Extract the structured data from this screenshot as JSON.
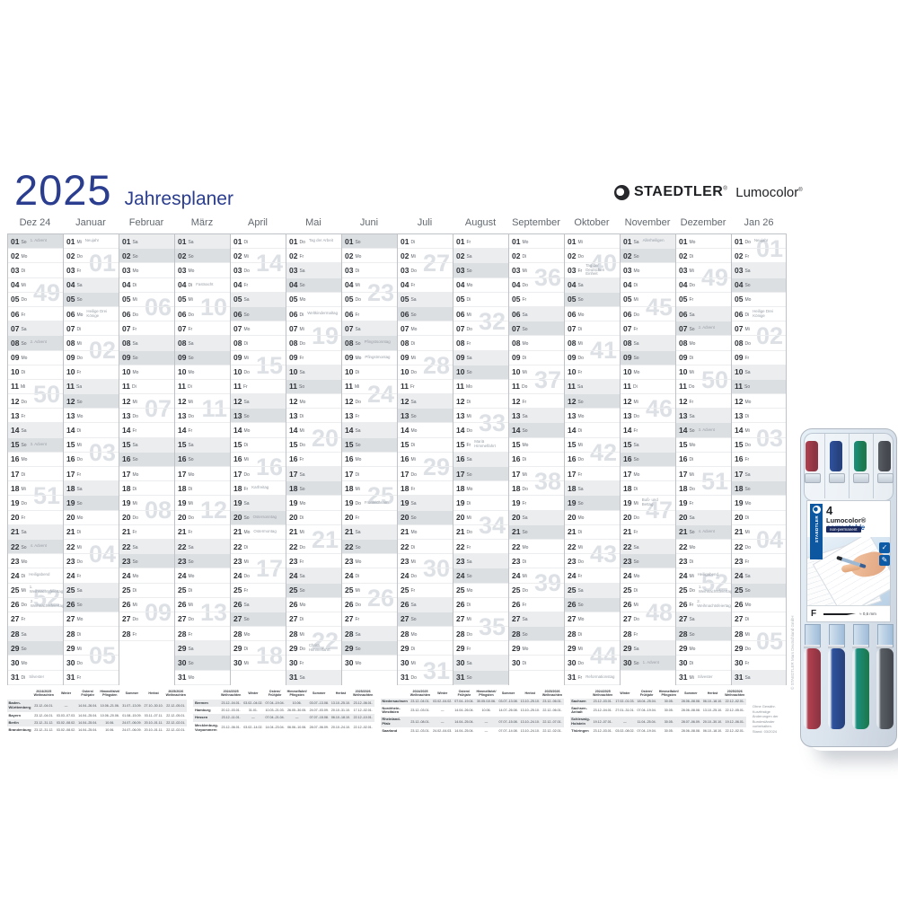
{
  "title": {
    "year": "2025",
    "name": "Jahresplaner"
  },
  "brand": {
    "staedtler": "STAEDTLER",
    "lumocolor": "Lumocolor",
    "reg": "®"
  },
  "colors": {
    "title_blue": "#2a3d8f",
    "staedtler_blue": "#0d57a0",
    "weekend_sat": "#ebedef",
    "weekend_sun": "#dcdfe2",
    "week_number": "#dde1e6",
    "grid_line": "#bfc3c8"
  },
  "calendar": {
    "weekday_abbr": [
      "Mo",
      "Di",
      "Mi",
      "Do",
      "Fr",
      "Sa",
      "So"
    ],
    "months": [
      {
        "label": "Dez 24",
        "days": 31,
        "first_weekday": 6,
        "holidays": {
          "1": "1. Advent",
          "8": "2. Advent",
          "15": "3. Advent",
          "22": "4. Advent",
          "24": "Heiligabend",
          "25": "1. Weihnachtsfeiertag",
          "26": "2. Weihnachtsfeiertag",
          "31": "Silvester"
        },
        "weeks": [
          {
            "n": "49",
            "row": 3
          },
          {
            "n": "50",
            "row": 10
          },
          {
            "n": "51",
            "row": 17
          },
          {
            "n": "52",
            "row": 24
          }
        ]
      },
      {
        "label": "Januar",
        "days": 31,
        "first_weekday": 2,
        "holidays": {
          "1": "Neujahr",
          "6": "Heilige Drei Könige"
        },
        "weeks": [
          {
            "n": "01",
            "row": 1
          },
          {
            "n": "02",
            "row": 7
          },
          {
            "n": "03",
            "row": 14
          },
          {
            "n": "04",
            "row": 21
          },
          {
            "n": "05",
            "row": 28
          }
        ]
      },
      {
        "label": "Februar",
        "days": 28,
        "first_weekday": 5,
        "holidays": {},
        "weeks": [
          {
            "n": "06",
            "row": 4
          },
          {
            "n": "07",
            "row": 11
          },
          {
            "n": "08",
            "row": 18
          },
          {
            "n": "09",
            "row": 25
          }
        ]
      },
      {
        "label": "März",
        "days": 31,
        "first_weekday": 5,
        "holidays": {
          "4": "Fastnacht"
        },
        "weeks": [
          {
            "n": "10",
            "row": 4
          },
          {
            "n": "11",
            "row": 11
          },
          {
            "n": "12",
            "row": 18
          },
          {
            "n": "13",
            "row": 25
          }
        ]
      },
      {
        "label": "April",
        "days": 30,
        "first_weekday": 1,
        "holidays": {
          "18": "Karfreitag",
          "20": "Ostersonntag",
          "21": "Ostermontag"
        },
        "weeks": [
          {
            "n": "14",
            "row": 1
          },
          {
            "n": "15",
            "row": 8
          },
          {
            "n": "16",
            "row": 15
          },
          {
            "n": "17",
            "row": 22
          },
          {
            "n": "18",
            "row": 28
          }
        ]
      },
      {
        "label": "Mai",
        "days": 31,
        "first_weekday": 3,
        "holidays": {
          "1": "Tag der Arbeit",
          "6": "Weltkindermaltag",
          "29": "Christi Himmelfahrt"
        },
        "weeks": [
          {
            "n": "19",
            "row": 6
          },
          {
            "n": "20",
            "row": 13
          },
          {
            "n": "21",
            "row": 20
          },
          {
            "n": "22",
            "row": 27
          }
        ]
      },
      {
        "label": "Juni",
        "days": 30,
        "first_weekday": 6,
        "holidays": {
          "8": "Pfingstsonntag",
          "9": "Pfingstmontag",
          "19": "Fronleichnam"
        },
        "weeks": [
          {
            "n": "23",
            "row": 3
          },
          {
            "n": "24",
            "row": 10
          },
          {
            "n": "25",
            "row": 17
          },
          {
            "n": "26",
            "row": 24
          }
        ]
      },
      {
        "label": "Juli",
        "days": 31,
        "first_weekday": 1,
        "holidays": {},
        "weeks": [
          {
            "n": "27",
            "row": 1
          },
          {
            "n": "28",
            "row": 8
          },
          {
            "n": "29",
            "row": 15
          },
          {
            "n": "30",
            "row": 22
          },
          {
            "n": "31",
            "row": 29
          }
        ]
      },
      {
        "label": "August",
        "days": 31,
        "first_weekday": 4,
        "holidays": {
          "15": "Mariä Himmelfahrt"
        },
        "weeks": [
          {
            "n": "32",
            "row": 5
          },
          {
            "n": "33",
            "row": 12
          },
          {
            "n": "34",
            "row": 19
          },
          {
            "n": "35",
            "row": 26
          }
        ]
      },
      {
        "label": "September",
        "days": 30,
        "first_weekday": 0,
        "holidays": {},
        "weeks": [
          {
            "n": "36",
            "row": 2
          },
          {
            "n": "37",
            "row": 9
          },
          {
            "n": "38",
            "row": 16
          },
          {
            "n": "39",
            "row": 23
          }
        ]
      },
      {
        "label": "Oktober",
        "days": 31,
        "first_weekday": 2,
        "holidays": {
          "3": "Tag der Deutschen Einheit",
          "31": "Reformationstag"
        },
        "weeks": [
          {
            "n": "40",
            "row": 1
          },
          {
            "n": "41",
            "row": 7
          },
          {
            "n": "42",
            "row": 14
          },
          {
            "n": "43",
            "row": 21
          },
          {
            "n": "44",
            "row": 28
          }
        ]
      },
      {
        "label": "November",
        "days": 30,
        "first_weekday": 5,
        "holidays": {
          "1": "Allerheiligen",
          "19": "Buß- und Bettag",
          "30": "1. Advent"
        },
        "weeks": [
          {
            "n": "45",
            "row": 4
          },
          {
            "n": "46",
            "row": 11
          },
          {
            "n": "47",
            "row": 18
          },
          {
            "n": "48",
            "row": 25
          }
        ]
      },
      {
        "label": "Dezember",
        "days": 31,
        "first_weekday": 0,
        "holidays": {
          "7": "2. Advent",
          "14": "3. Advent",
          "21": "4. Advent",
          "24": "Heiligabend",
          "25": "1. Weihnachtsfeiertag",
          "26": "2. Weihnachtsfeiertag",
          "31": "Silvester"
        },
        "weeks": [
          {
            "n": "49",
            "row": 2
          },
          {
            "n": "50",
            "row": 9
          },
          {
            "n": "51",
            "row": 16
          },
          {
            "n": "52",
            "row": 23
          }
        ]
      },
      {
        "label": "Jan 26",
        "days": 31,
        "first_weekday": 3,
        "holidays": {
          "1": "Neujahr",
          "6": "Heilige Drei Könige"
        },
        "weeks": [
          {
            "n": "01",
            "row": 0
          },
          {
            "n": "02",
            "row": 6
          },
          {
            "n": "03",
            "row": 13
          },
          {
            "n": "04",
            "row": 20
          },
          {
            "n": "05",
            "row": 27
          }
        ]
      }
    ]
  },
  "ferien_table": {
    "col_headers": [
      "2024/2025\nWeihnachten",
      "Winter",
      "Ostern/\nFrühjahr",
      "Himmelfahrt/\nPfingsten",
      "Sommer",
      "Herbst",
      "2025/2026\nWeihnachten"
    ],
    "blocks": [
      [
        {
          "state": "Baden-Württemberg",
          "dates": [
            "23.12.-04.01.",
            "—",
            "14.04.-26.04.",
            "10.06.-21.06.",
            "31.07.-13.09.",
            "27.10.-30.10.",
            "22.12.-05.01."
          ]
        },
        {
          "state": "Bayern",
          "dates": [
            "23.12.-04.01.",
            "03.03.-07.03.",
            "14.04.-25.04.",
            "10.06.-20.06.",
            "01.08.-15.09.",
            "03.11.-07.11.",
            "22.12.-05.01."
          ]
        },
        {
          "state": "Berlin",
          "dates": [
            "23.12.-31.12.",
            "03.02.-08.02.",
            "14.04.-25.04.",
            "10.06.",
            "24.07.-06.09.",
            "20.10.-01.11.",
            "22.12.-02.01."
          ]
        },
        {
          "state": "Brandenburg",
          "dates": [
            "23.12.-31.12.",
            "03.02.-08.02.",
            "14.04.-25.04.",
            "10.06.",
            "24.07.-06.09.",
            "20.10.-01.11.",
            "22.12.-02.01."
          ]
        }
      ],
      [
        {
          "state": "Bremen",
          "dates": [
            "23.12.-04.01.",
            "03.02.-04.02.",
            "07.04.-19.04.",
            "10.06.",
            "03.07.-13.08.",
            "13.10.-25.10.",
            "23.12.-06.01."
          ]
        },
        {
          "state": "Hamburg",
          "dates": [
            "20.12.-03.01.",
            "31.01.",
            "10.03.-21.03.",
            "26.05.-30.05.",
            "24.07.-03.09.",
            "20.10.-31.10.",
            "17.12.-02.01."
          ]
        },
        {
          "state": "Hessen",
          "dates": [
            "23.12.-11.01.",
            "—",
            "07.04.-21.04.",
            "—",
            "07.07.-15.08.",
            "06.10.-18.10.",
            "22.12.-10.01."
          ]
        },
        {
          "state": "Mecklenburg-Vorpommern",
          "dates": [
            "23.12.-06.01.",
            "03.02.-14.02.",
            "14.04.-23.04.",
            "06.06.-10.06.",
            "28.07.-06.09.",
            "20.10.-24.10.",
            "22.12.-02.01."
          ]
        }
      ],
      [
        {
          "state": "Niedersachsen",
          "dates": [
            "23.12.-04.01.",
            "03.02.-04.02.",
            "07.04.-19.04.",
            "30.05./10.06.",
            "03.07.-13.08.",
            "13.10.-25.10.",
            "23.12.-06.01."
          ]
        },
        {
          "state": "Nordrhein-Westfalen",
          "dates": [
            "23.12.-03.01.",
            "—",
            "14.04.-26.04.",
            "10.06.",
            "14.07.-26.08.",
            "13.10.-25.10.",
            "22.12.-06.01."
          ]
        },
        {
          "state": "Rheinland-Pfalz",
          "dates": [
            "23.12.-08.01.",
            "—",
            "14.04.-25.04.",
            "—",
            "07.07.-15.08.",
            "13.10.-24.10.",
            "22.12.-07.01."
          ]
        },
        {
          "state": "Saarland",
          "dates": [
            "23.12.-03.01.",
            "24.02.-04.03.",
            "14.04.-25.04.",
            "—",
            "07.07.-14.08.",
            "13.10.-24.10.",
            "22.12.-02.01."
          ]
        }
      ],
      [
        {
          "state": "Sachsen",
          "dates": [
            "23.12.-03.01.",
            "17.02.-01.03.",
            "18.04.-25.04.",
            "30.05.",
            "28.06.-08.08.",
            "06.10.-18.10.",
            "22.12.-02.01."
          ]
        },
        {
          "state": "Sachsen-Anhalt",
          "dates": [
            "23.12.-04.01.",
            "27.01.-31.01.",
            "07.04.-19.04.",
            "30.05.",
            "28.06.-08.08.",
            "13.10.-25.10.",
            "22.12.-05.01."
          ]
        },
        {
          "state": "Schleswig-Holstein",
          "dates": [
            "19.12.-07.01.",
            "—",
            "11.04.-25.04.",
            "30.05.",
            "28.07.-06.09.",
            "20.10.-30.10.",
            "19.12.-06.01."
          ]
        },
        {
          "state": "Thüringen",
          "dates": [
            "23.12.-03.01.",
            "03.02.-08.02.",
            "07.04.-19.04.",
            "30.05.",
            "28.06.-08.08.",
            "06.10.-18.10.",
            "22.12.-02.01."
          ]
        }
      ]
    ],
    "note_lines": [
      "Ohne Gewähr.",
      "Kurzfristige Änderungen der",
      "Bundesländer vorbehalten.",
      "Stand: 03/2024"
    ]
  },
  "side_note": "© STAEDTLER Mars Deutschland GmbH",
  "pen_case": {
    "insert": {
      "count": "4",
      "product": "Lumocolor®",
      "feature": "correctable",
      "subline": "non-permanent",
      "brand_vertical": "STAEDTLER",
      "tip_grade": "F",
      "tip_size": "≈ 0,6 mm",
      "badge1": "✓",
      "badge2": "✎"
    },
    "pens": [
      {
        "name": "red",
        "cap": "#b2404f",
        "top": "#8e3543"
      },
      {
        "name": "blue",
        "cap": "#2f539f",
        "top": "#27427f"
      },
      {
        "name": "green",
        "cap": "#1b8f7e",
        "top": "#1d7a50"
      },
      {
        "name": "grey",
        "cap": "#595e65",
        "top": "#45494f"
      }
    ]
  }
}
